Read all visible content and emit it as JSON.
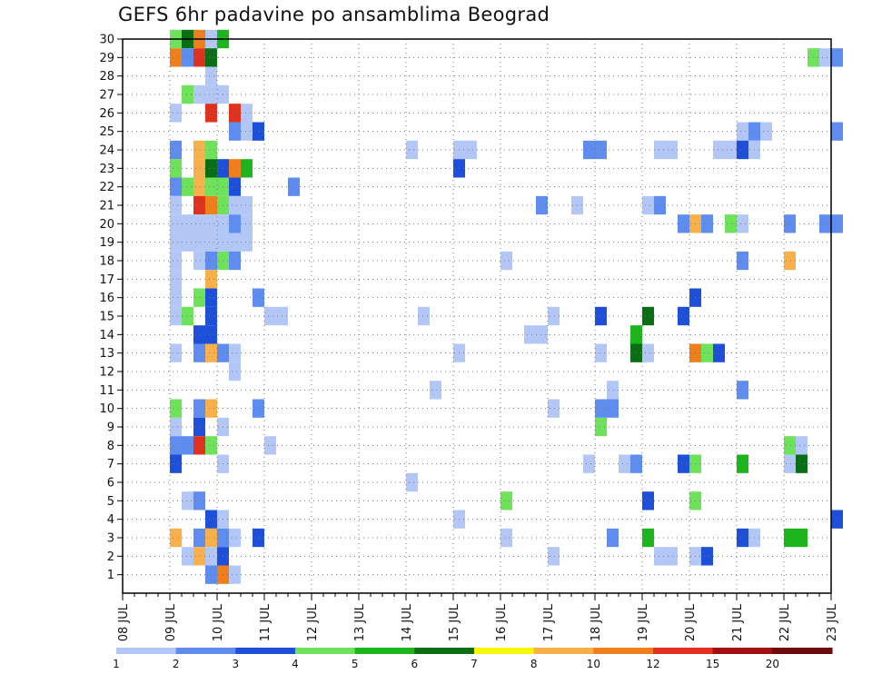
{
  "chart_data": {
    "type": "heatmap",
    "title": "GEFS 6hr padavine po ansamblima Beograd",
    "xlabel": "",
    "ylabel": "",
    "x_ticks": [
      "08 JUL",
      "09 JUL",
      "10 JUL",
      "11 JUL",
      "12 JUL",
      "13 JUL",
      "14 JUL",
      "15 JUL",
      "16 JUL",
      "17 JUL",
      "18 JUL",
      "19 JUL",
      "20 JUL",
      "21 JUL",
      "22 JUL",
      "23 JUL"
    ],
    "x_range": [
      "08 JUL 00",
      "23 JUL 00"
    ],
    "y_ticks": [
      1,
      2,
      3,
      4,
      5,
      6,
      7,
      8,
      9,
      10,
      11,
      12,
      13,
      14,
      15,
      16,
      17,
      18,
      19,
      20,
      21,
      22,
      23,
      24,
      25,
      26,
      27,
      28,
      29,
      30
    ],
    "ylim": [
      0,
      30
    ],
    "grid": true,
    "legend_position": "bottom",
    "color_scale": {
      "levels": [
        1,
        2,
        3,
        4,
        5,
        6,
        7,
        8,
        10,
        12,
        15,
        20
      ],
      "colors": [
        "#b3c7f7",
        "#5e8def",
        "#1d4fd8",
        "#6ee25a",
        "#1cb51c",
        "#0a6e14",
        "#f7f700",
        "#f7b04a",
        "#ef7f1a",
        "#e0301e",
        "#a01010",
        "#6e0a0a"
      ]
    },
    "cells": [
      {
        "member": 30,
        "step": 4,
        "value": 4.5
      },
      {
        "member": 30,
        "step": 5,
        "value": 6.5
      },
      {
        "member": 30,
        "step": 6,
        "value": 10.5
      },
      {
        "member": 30,
        "step": 7,
        "value": 1.5
      },
      {
        "member": 30,
        "step": 8,
        "value": 5.5
      },
      {
        "member": 29,
        "step": 4,
        "value": 10.5
      },
      {
        "member": 29,
        "step": 5,
        "value": 2.5
      },
      {
        "member": 29,
        "step": 6,
        "value": 12.5
      },
      {
        "member": 29,
        "step": 7,
        "value": 6.5
      },
      {
        "member": 29,
        "step": 58,
        "value": 4.5
      },
      {
        "member": 29,
        "step": 59,
        "value": 1.5
      },
      {
        "member": 29,
        "step": 60,
        "value": 2.5
      },
      {
        "member": 28,
        "step": 7,
        "value": 1.5
      },
      {
        "member": 27,
        "step": 5,
        "value": 4.5
      },
      {
        "member": 27,
        "step": 6,
        "value": 1.5
      },
      {
        "member": 27,
        "step": 7,
        "value": 1.5
      },
      {
        "member": 27,
        "step": 8,
        "value": 1.5
      },
      {
        "member": 26,
        "step": 4,
        "value": 1.5
      },
      {
        "member": 26,
        "step": 7,
        "value": 12.5
      },
      {
        "member": 26,
        "step": 9,
        "value": 12.5
      },
      {
        "member": 26,
        "step": 10,
        "value": 1.5
      },
      {
        "member": 25,
        "step": 9,
        "value": 2.5
      },
      {
        "member": 25,
        "step": 10,
        "value": 1.5
      },
      {
        "member": 25,
        "step": 11,
        "value": 3.5
      },
      {
        "member": 25,
        "step": 52,
        "value": 1.5
      },
      {
        "member": 25,
        "step": 53,
        "value": 2.5
      },
      {
        "member": 25,
        "step": 54,
        "value": 1.5
      },
      {
        "member": 25,
        "step": 60,
        "value": 2.5
      },
      {
        "member": 24,
        "step": 4,
        "value": 2.5
      },
      {
        "member": 24,
        "step": 6,
        "value": 8.5
      },
      {
        "member": 24,
        "step": 7,
        "value": 4.5
      },
      {
        "member": 24,
        "step": 24,
        "value": 1.5
      },
      {
        "member": 24,
        "step": 28,
        "value": 1.5
      },
      {
        "member": 24,
        "step": 29,
        "value": 1.5
      },
      {
        "member": 24,
        "step": 39,
        "value": 2.5
      },
      {
        "member": 24,
        "step": 40,
        "value": 2.5
      },
      {
        "member": 24,
        "step": 45,
        "value": 1.5
      },
      {
        "member": 24,
        "step": 46,
        "value": 1.5
      },
      {
        "member": 24,
        "step": 50,
        "value": 1.5
      },
      {
        "member": 24,
        "step": 51,
        "value": 1.5
      },
      {
        "member": 24,
        "step": 52,
        "value": 3.5
      },
      {
        "member": 24,
        "step": 53,
        "value": 1.5
      },
      {
        "member": 23,
        "step": 4,
        "value": 4.5
      },
      {
        "member": 23,
        "step": 6,
        "value": 8.5
      },
      {
        "member": 23,
        "step": 7,
        "value": 6.5
      },
      {
        "member": 23,
        "step": 8,
        "value": 3.5
      },
      {
        "member": 23,
        "step": 9,
        "value": 10.5
      },
      {
        "member": 23,
        "step": 10,
        "value": 5.5
      },
      {
        "member": 23,
        "step": 28,
        "value": 3.5
      },
      {
        "member": 22,
        "step": 4,
        "value": 2.5
      },
      {
        "member": 22,
        "step": 5,
        "value": 4.5
      },
      {
        "member": 22,
        "step": 6,
        "value": 8.5
      },
      {
        "member": 22,
        "step": 7,
        "value": 4.5
      },
      {
        "member": 22,
        "step": 8,
        "value": 4.5
      },
      {
        "member": 22,
        "step": 9,
        "value": 3.5
      },
      {
        "member": 22,
        "step": 14,
        "value": 2.5
      },
      {
        "member": 21,
        "step": 4,
        "value": 1.5
      },
      {
        "member": 21,
        "step": 6,
        "value": 13.0
      },
      {
        "member": 21,
        "step": 7,
        "value": 11.0
      },
      {
        "member": 21,
        "step": 8,
        "value": 4.5
      },
      {
        "member": 21,
        "step": 9,
        "value": 1.5
      },
      {
        "member": 21,
        "step": 10,
        "value": 1.5
      },
      {
        "member": 21,
        "step": 35,
        "value": 2.5
      },
      {
        "member": 21,
        "step": 38,
        "value": 1.5
      },
      {
        "member": 21,
        "step": 44,
        "value": 1.5
      },
      {
        "member": 21,
        "step": 45,
        "value": 2.5
      },
      {
        "member": 20,
        "step": 4,
        "value": 1.5
      },
      {
        "member": 20,
        "step": 5,
        "value": 1.5
      },
      {
        "member": 20,
        "step": 6,
        "value": 1.5
      },
      {
        "member": 20,
        "step": 7,
        "value": 1.5
      },
      {
        "member": 20,
        "step": 8,
        "value": 1.5
      },
      {
        "member": 20,
        "step": 9,
        "value": 2.5
      },
      {
        "member": 20,
        "step": 10,
        "value": 1.5
      },
      {
        "member": 20,
        "step": 47,
        "value": 2.5
      },
      {
        "member": 20,
        "step": 48,
        "value": 8.5
      },
      {
        "member": 20,
        "step": 49,
        "value": 2.5
      },
      {
        "member": 20,
        "step": 51,
        "value": 4.5
      },
      {
        "member": 20,
        "step": 52,
        "value": 1.5
      },
      {
        "member": 20,
        "step": 56,
        "value": 2.5
      },
      {
        "member": 20,
        "step": 59,
        "value": 2.5
      },
      {
        "member": 20,
        "step": 60,
        "value": 2.5
      },
      {
        "member": 19,
        "step": 4,
        "value": 1.5
      },
      {
        "member": 19,
        "step": 5,
        "value": 1.5
      },
      {
        "member": 19,
        "step": 6,
        "value": 1.5
      },
      {
        "member": 19,
        "step": 7,
        "value": 1.5
      },
      {
        "member": 19,
        "step": 8,
        "value": 1.5
      },
      {
        "member": 19,
        "step": 9,
        "value": 1.5
      },
      {
        "member": 19,
        "step": 10,
        "value": 1.5
      },
      {
        "member": 18,
        "step": 4,
        "value": 1.5
      },
      {
        "member": 18,
        "step": 6,
        "value": 1.5
      },
      {
        "member": 18,
        "step": 7,
        "value": 2.5
      },
      {
        "member": 18,
        "step": 8,
        "value": 4.5
      },
      {
        "member": 18,
        "step": 9,
        "value": 2.5
      },
      {
        "member": 18,
        "step": 32,
        "value": 1.5
      },
      {
        "member": 18,
        "step": 52,
        "value": 2.5
      },
      {
        "member": 18,
        "step": 56,
        "value": 8.5
      },
      {
        "member": 17,
        "step": 4,
        "value": 1.5
      },
      {
        "member": 17,
        "step": 7,
        "value": 8.5
      },
      {
        "member": 16,
        "step": 4,
        "value": 1.5
      },
      {
        "member": 16,
        "step": 6,
        "value": 4.5
      },
      {
        "member": 16,
        "step": 7,
        "value": 3.5
      },
      {
        "member": 16,
        "step": 11,
        "value": 2.5
      },
      {
        "member": 16,
        "step": 48,
        "value": 3.5
      },
      {
        "member": 15,
        "step": 4,
        "value": 1.5
      },
      {
        "member": 15,
        "step": 5,
        "value": 4.5
      },
      {
        "member": 15,
        "step": 7,
        "value": 3.5
      },
      {
        "member": 15,
        "step": 12,
        "value": 1.5
      },
      {
        "member": 15,
        "step": 13,
        "value": 1.5
      },
      {
        "member": 15,
        "step": 25,
        "value": 1.5
      },
      {
        "member": 15,
        "step": 36,
        "value": 1.5
      },
      {
        "member": 15,
        "step": 40,
        "value": 3.5
      },
      {
        "member": 15,
        "step": 44,
        "value": 6.5
      },
      {
        "member": 15,
        "step": 47,
        "value": 3.5
      },
      {
        "member": 14,
        "step": 6,
        "value": 3.5
      },
      {
        "member": 14,
        "step": 7,
        "value": 3.5
      },
      {
        "member": 14,
        "step": 34,
        "value": 1.5
      },
      {
        "member": 14,
        "step": 35,
        "value": 1.5
      },
      {
        "member": 14,
        "step": 43,
        "value": 5.5
      },
      {
        "member": 13,
        "step": 4,
        "value": 1.5
      },
      {
        "member": 13,
        "step": 6,
        "value": 2.5
      },
      {
        "member": 13,
        "step": 7,
        "value": 8.5
      },
      {
        "member": 13,
        "step": 8,
        "value": 2.5
      },
      {
        "member": 13,
        "step": 9,
        "value": 1.5
      },
      {
        "member": 13,
        "step": 28,
        "value": 1.5
      },
      {
        "member": 13,
        "step": 40,
        "value": 1.5
      },
      {
        "member": 13,
        "step": 43,
        "value": 6.5
      },
      {
        "member": 13,
        "step": 44,
        "value": 1.5
      },
      {
        "member": 13,
        "step": 48,
        "value": 10.5
      },
      {
        "member": 13,
        "step": 49,
        "value": 4.5
      },
      {
        "member": 13,
        "step": 50,
        "value": 3.5
      },
      {
        "member": 12,
        "step": 9,
        "value": 1.5
      },
      {
        "member": 11,
        "step": 26,
        "value": 1.5
      },
      {
        "member": 11,
        "step": 41,
        "value": 1.5
      },
      {
        "member": 11,
        "step": 52,
        "value": 2.5
      },
      {
        "member": 10,
        "step": 4,
        "value": 4.5
      },
      {
        "member": 10,
        "step": 6,
        "value": 2.5
      },
      {
        "member": 10,
        "step": 7,
        "value": 8.5
      },
      {
        "member": 10,
        "step": 11,
        "value": 2.5
      },
      {
        "member": 10,
        "step": 36,
        "value": 1.5
      },
      {
        "member": 10,
        "step": 40,
        "value": 2.5
      },
      {
        "member": 10,
        "step": 41,
        "value": 2.5
      },
      {
        "member": 9,
        "step": 4,
        "value": 1.5
      },
      {
        "member": 9,
        "step": 6,
        "value": 3.5
      },
      {
        "member": 9,
        "step": 8,
        "value": 1.5
      },
      {
        "member": 9,
        "step": 40,
        "value": 4.5
      },
      {
        "member": 8,
        "step": 4,
        "value": 2.5
      },
      {
        "member": 8,
        "step": 5,
        "value": 2.5
      },
      {
        "member": 8,
        "step": 6,
        "value": 13.0
      },
      {
        "member": 8,
        "step": 7,
        "value": 4.5
      },
      {
        "member": 8,
        "step": 12,
        "value": 1.5
      },
      {
        "member": 8,
        "step": 56,
        "value": 4.5
      },
      {
        "member": 8,
        "step": 57,
        "value": 1.5
      },
      {
        "member": 7,
        "step": 4,
        "value": 3.5
      },
      {
        "member": 7,
        "step": 8,
        "value": 1.5
      },
      {
        "member": 7,
        "step": 39,
        "value": 1.5
      },
      {
        "member": 7,
        "step": 42,
        "value": 1.5
      },
      {
        "member": 7,
        "step": 43,
        "value": 2.5
      },
      {
        "member": 7,
        "step": 47,
        "value": 3.5
      },
      {
        "member": 7,
        "step": 48,
        "value": 4.5
      },
      {
        "member": 7,
        "step": 52,
        "value": 5.5
      },
      {
        "member": 7,
        "step": 56,
        "value": 1.5
      },
      {
        "member": 7,
        "step": 57,
        "value": 6.5
      },
      {
        "member": 6,
        "step": 24,
        "value": 1.5
      },
      {
        "member": 5,
        "step": 5,
        "value": 1.5
      },
      {
        "member": 5,
        "step": 6,
        "value": 2.5
      },
      {
        "member": 5,
        "step": 32,
        "value": 4.5
      },
      {
        "member": 5,
        "step": 44,
        "value": 3.5
      },
      {
        "member": 5,
        "step": 48,
        "value": 4.5
      },
      {
        "member": 4,
        "step": 7,
        "value": 3.5
      },
      {
        "member": 4,
        "step": 8,
        "value": 1.5
      },
      {
        "member": 4,
        "step": 28,
        "value": 1.5
      },
      {
        "member": 4,
        "step": 60,
        "value": 3.5
      },
      {
        "member": 3,
        "step": 4,
        "value": 8.5
      },
      {
        "member": 3,
        "step": 6,
        "value": 2.5
      },
      {
        "member": 3,
        "step": 7,
        "value": 8.5
      },
      {
        "member": 3,
        "step": 8,
        "value": 2.5
      },
      {
        "member": 3,
        "step": 9,
        "value": 1.5
      },
      {
        "member": 3,
        "step": 11,
        "value": 3.5
      },
      {
        "member": 3,
        "step": 32,
        "value": 1.5
      },
      {
        "member": 3,
        "step": 41,
        "value": 2.5
      },
      {
        "member": 3,
        "step": 44,
        "value": 5.5
      },
      {
        "member": 3,
        "step": 52,
        "value": 3.5
      },
      {
        "member": 3,
        "step": 53,
        "value": 1.5
      },
      {
        "member": 3,
        "step": 56,
        "value": 5.5
      },
      {
        "member": 3,
        "step": 57,
        "value": 5.5
      },
      {
        "member": 2,
        "step": 5,
        "value": 1.5
      },
      {
        "member": 2,
        "step": 6,
        "value": 8.5
      },
      {
        "member": 2,
        "step": 7,
        "value": 1.5
      },
      {
        "member": 2,
        "step": 8,
        "value": 3.5
      },
      {
        "member": 2,
        "step": 36,
        "value": 1.5
      },
      {
        "member": 2,
        "step": 45,
        "value": 1.5
      },
      {
        "member": 2,
        "step": 46,
        "value": 1.5
      },
      {
        "member": 2,
        "step": 48,
        "value": 1.5
      },
      {
        "member": 2,
        "step": 49,
        "value": 3.5
      },
      {
        "member": 1,
        "step": 7,
        "value": 2.5
      },
      {
        "member": 1,
        "step": 8,
        "value": 10.5
      },
      {
        "member": 1,
        "step": 9,
        "value": 1.5
      }
    ]
  }
}
